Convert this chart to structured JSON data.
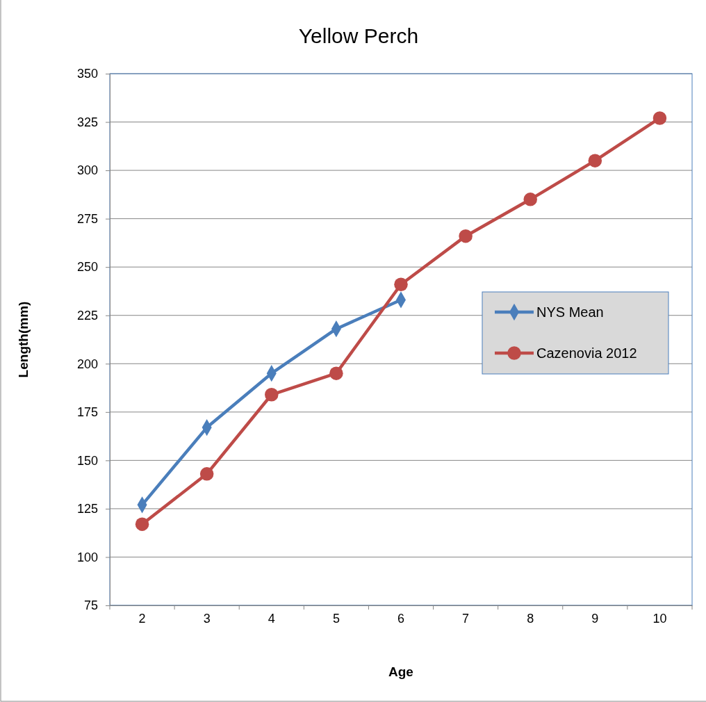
{
  "chart_data": {
    "type": "line",
    "title": "Yellow Perch",
    "xlabel": "Age",
    "ylabel": "Length(mm)",
    "categories": [
      "2",
      "3",
      "4",
      "5",
      "6",
      "7",
      "8",
      "9",
      "10"
    ],
    "series": [
      {
        "name": "NYS Mean",
        "color": "#4a7ebb",
        "marker": "diamond",
        "values": [
          127,
          167,
          195,
          218,
          233,
          null,
          null,
          null,
          null
        ]
      },
      {
        "name": "Cazenovia 2012",
        "color": "#be4b48",
        "marker": "circle",
        "values": [
          117,
          143,
          184,
          195,
          241,
          266,
          285,
          305,
          327
        ]
      }
    ],
    "ylim": [
      75,
      350
    ],
    "yticks": [
      75,
      100,
      125,
      150,
      175,
      200,
      225,
      250,
      275,
      300,
      325,
      350
    ],
    "grid": "y",
    "legend": "right",
    "line_style": "solid"
  }
}
